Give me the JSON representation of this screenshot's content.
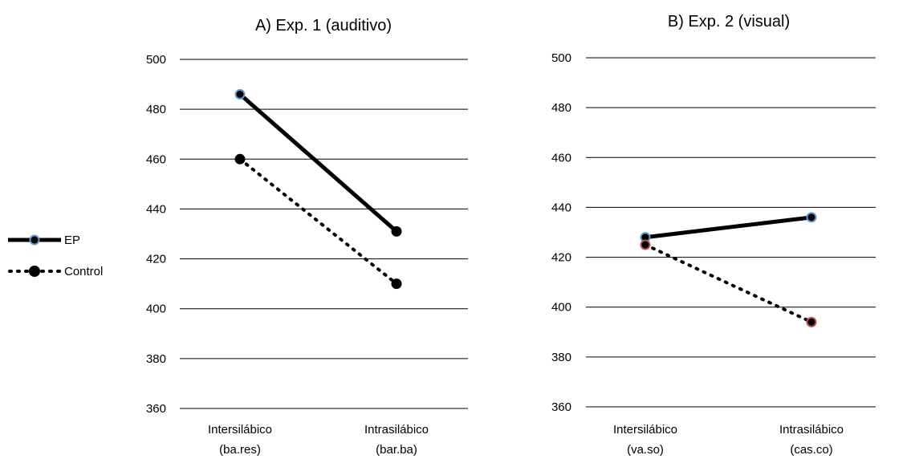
{
  "chart_data": [
    {
      "type": "line",
      "title": "A) Exp. 1 (auditivo)",
      "categories": [
        [
          "Intersilábico",
          "(ba.res)"
        ],
        [
          "Intrasilábico",
          "(bar.ba)"
        ]
      ],
      "ylim": [
        360,
        500
      ],
      "yticks": [
        360,
        380,
        400,
        420,
        440,
        460,
        480,
        500
      ],
      "grid": true,
      "series": [
        {
          "name": "EP",
          "values": [
            486,
            431
          ],
          "marker_colors": [
            "#5b9bd5",
            "#000000"
          ]
        },
        {
          "name": "Control",
          "values": [
            460,
            410
          ],
          "marker_colors": [
            "#000000",
            "#000000"
          ]
        }
      ]
    },
    {
      "type": "line",
      "title": "B) Exp. 2 (visual)",
      "categories": [
        [
          "Intersilábico",
          "(va.so)"
        ],
        [
          "Intrasilábico",
          "(cas.co)"
        ]
      ],
      "ylim": [
        360,
        500
      ],
      "yticks": [
        360,
        380,
        400,
        420,
        440,
        460,
        480,
        500
      ],
      "grid": true,
      "series": [
        {
          "name": "EP",
          "values": [
            428,
            436
          ],
          "marker_colors": [
            "#5b9bd5",
            "#5b9bd5"
          ]
        },
        {
          "name": "Control",
          "values": [
            425,
            394
          ],
          "marker_colors": [
            "#c0504d",
            "#c0504d"
          ]
        }
      ]
    }
  ],
  "legend": {
    "placement": "left",
    "items": [
      {
        "label": "EP",
        "line": "solid",
        "marker_edge": "#5b9bd5"
      },
      {
        "label": "Control",
        "line": "dotted",
        "marker_edge": "#000000"
      }
    ]
  }
}
